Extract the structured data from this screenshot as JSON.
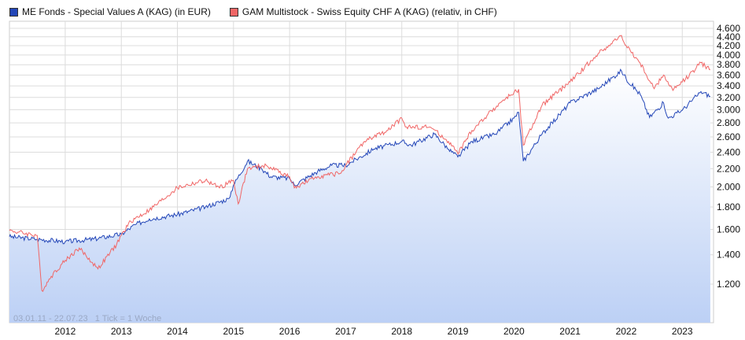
{
  "chart_data": {
    "type": "line",
    "y_scale": "log",
    "ylim": [
      980,
      4775
    ],
    "xlim": [
      "2011-01-03",
      "2023-07-22"
    ],
    "grid": true,
    "legend_placement": "top-left",
    "y_ticks": [
      1200,
      1400,
      1600,
      1800,
      2000,
      2200,
      2400,
      2600,
      2800,
      3000,
      3200,
      3400,
      3600,
      3800,
      4000,
      4200,
      4400,
      4600
    ],
    "y_tick_labels": [
      "1.200",
      "1.400",
      "1.600",
      "1.800",
      "2.000",
      "2.200",
      "2.400",
      "2.600",
      "2.800",
      "3.000",
      "3.200",
      "3.400",
      "3.600",
      "3.800",
      "4.000",
      "4.200",
      "4.400",
      "4.600"
    ],
    "x_ticks": [
      "2012",
      "2013",
      "2014",
      "2015",
      "2016",
      "2017",
      "2018",
      "2019",
      "2020",
      "2021",
      "2022",
      "2023"
    ],
    "annotation": "03.01.11 - 22.07.23   1 Tick = 1 Woche",
    "series": [
      {
        "name": "ME Fonds - Special Values A (KAG) (in EUR)",
        "color": "#2447b8",
        "filled": true,
        "points": [
          [
            "2011-01",
            1540
          ],
          [
            "2011-07",
            1520
          ],
          [
            "2012-01",
            1500
          ],
          [
            "2012-07",
            1520
          ],
          [
            "2013-01",
            1560
          ],
          [
            "2013-04",
            1640
          ],
          [
            "2013-07",
            1690
          ],
          [
            "2014-01",
            1730
          ],
          [
            "2014-07",
            1800
          ],
          [
            "2014-12",
            1880
          ],
          [
            "2015-01",
            2020
          ],
          [
            "2015-04",
            2290
          ],
          [
            "2015-07",
            2200
          ],
          [
            "2015-09",
            2110
          ],
          [
            "2016-01",
            2090
          ],
          [
            "2016-02",
            2020
          ],
          [
            "2016-07",
            2170
          ],
          [
            "2016-10",
            2240
          ],
          [
            "2017-01",
            2240
          ],
          [
            "2017-07",
            2440
          ],
          [
            "2018-01",
            2540
          ],
          [
            "2018-03",
            2490
          ],
          [
            "2018-08",
            2640
          ],
          [
            "2018-11",
            2440
          ],
          [
            "2019-01",
            2340
          ],
          [
            "2019-04",
            2540
          ],
          [
            "2019-09",
            2640
          ],
          [
            "2020-01",
            2870
          ],
          [
            "2020-02",
            2960
          ],
          [
            "2020-03",
            2290
          ],
          [
            "2020-07",
            2640
          ],
          [
            "2021-01",
            3110
          ],
          [
            "2021-07",
            3350
          ],
          [
            "2021-12",
            3680
          ],
          [
            "2022-01",
            3530
          ],
          [
            "2022-04",
            3250
          ],
          [
            "2022-06",
            2880
          ],
          [
            "2022-09",
            3110
          ],
          [
            "2022-10",
            2870
          ],
          [
            "2023-01",
            2990
          ],
          [
            "2023-04",
            3220
          ],
          [
            "2023-05",
            3300
          ],
          [
            "2023-07",
            3220
          ]
        ]
      },
      {
        "name": "GAM Multistock - Swiss Equity CHF A (KAG) (relativ, in CHF)",
        "color": "#f06666",
        "filled": false,
        "points": [
          [
            "2011-01",
            1590
          ],
          [
            "2011-07",
            1550
          ],
          [
            "2011-08",
            1160
          ],
          [
            "2011-10",
            1250
          ],
          [
            "2012-01",
            1360
          ],
          [
            "2012-04",
            1450
          ],
          [
            "2012-08",
            1300
          ],
          [
            "2012-12",
            1480
          ],
          [
            "2013-01",
            1550
          ],
          [
            "2013-03",
            1670
          ],
          [
            "2013-07",
            1770
          ],
          [
            "2013-12",
            1950
          ],
          [
            "2014-01",
            1990
          ],
          [
            "2014-07",
            2070
          ],
          [
            "2014-10",
            1990
          ],
          [
            "2015-01",
            2070
          ],
          [
            "2015-02",
            1830
          ],
          [
            "2015-04",
            2200
          ],
          [
            "2015-08",
            2240
          ],
          [
            "2016-01",
            2110
          ],
          [
            "2016-02",
            1990
          ],
          [
            "2016-07",
            2110
          ],
          [
            "2016-12",
            2150
          ],
          [
            "2017-01",
            2240
          ],
          [
            "2017-05",
            2540
          ],
          [
            "2017-10",
            2690
          ],
          [
            "2018-01",
            2870
          ],
          [
            "2018-02",
            2740
          ],
          [
            "2018-07",
            2740
          ],
          [
            "2018-11",
            2540
          ],
          [
            "2019-01",
            2380
          ],
          [
            "2019-04",
            2690
          ],
          [
            "2019-10",
            3110
          ],
          [
            "2020-02",
            3340
          ],
          [
            "2020-03",
            2490
          ],
          [
            "2020-07",
            3070
          ],
          [
            "2021-01",
            3470
          ],
          [
            "2021-07",
            4030
          ],
          [
            "2021-12",
            4430
          ],
          [
            "2022-01",
            4200
          ],
          [
            "2022-04",
            3830
          ],
          [
            "2022-07",
            3350
          ],
          [
            "2022-09",
            3600
          ],
          [
            "2022-11",
            3320
          ],
          [
            "2023-01",
            3470
          ],
          [
            "2023-04",
            3740
          ],
          [
            "2023-05",
            3840
          ],
          [
            "2023-07",
            3700
          ]
        ]
      }
    ]
  }
}
